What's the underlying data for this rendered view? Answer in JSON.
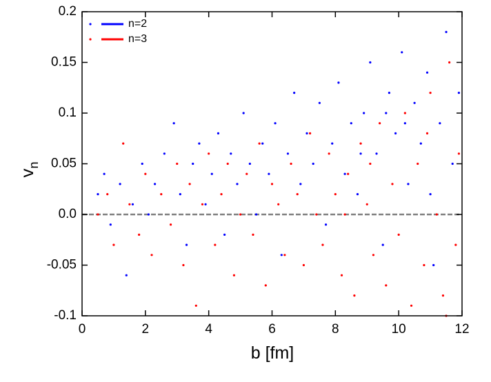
{
  "chart_data": {
    "type": "scatter",
    "xlabel": "b [fm]",
    "ylabel": "v",
    "ylabel_subscript": "n",
    "xlim": [
      0,
      12
    ],
    "xticks": [
      0,
      2,
      4,
      6,
      8,
      10,
      12
    ],
    "ylim": [
      -0.1,
      0.2
    ],
    "yticks": [
      -0.1,
      -0.05,
      {
        "value": 0,
        "label": "0.0"
      },
      0.05,
      0.1,
      0.15,
      0.2
    ],
    "legend": "upper left",
    "reference_line": {
      "y": 0,
      "color": "#808080",
      "style": "dashed"
    },
    "series": [
      {
        "name": "n=2",
        "color": "#0000ff",
        "x": [
          0.5,
          0.7,
          0.9,
          1.2,
          1.4,
          1.6,
          1.9,
          2.1,
          2.3,
          2.6,
          2.9,
          3.1,
          3.3,
          3.5,
          3.7,
          3.9,
          4.1,
          4.3,
          4.5,
          4.7,
          4.9,
          5.1,
          5.3,
          5.5,
          5.7,
          5.9,
          6.1,
          6.3,
          6.5,
          6.7,
          6.9,
          7.1,
          7.3,
          7.5,
          7.7,
          7.9,
          8.1,
          8.3,
          8.5,
          8.7,
          8.9,
          9.1,
          9.3,
          9.5,
          9.7,
          9.9,
          10.1,
          10.3,
          10.5,
          10.7,
          10.9,
          11.1,
          11.3,
          11.5,
          11.7,
          11.9,
          10.2,
          9.6,
          8.8,
          11.0
        ],
        "values": [
          0.02,
          0.04,
          -0.01,
          0.03,
          -0.06,
          0.01,
          0.05,
          0.0,
          0.03,
          0.06,
          0.09,
          0.02,
          -0.03,
          0.05,
          0.07,
          0.01,
          0.04,
          0.08,
          -0.02,
          0.06,
          0.03,
          0.1,
          0.05,
          0.0,
          0.07,
          0.04,
          0.09,
          -0.04,
          0.06,
          0.12,
          0.03,
          0.08,
          0.05,
          0.11,
          -0.01,
          0.07,
          0.13,
          0.04,
          0.09,
          0.02,
          0.1,
          0.15,
          0.06,
          -0.03,
          0.12,
          0.08,
          0.16,
          0.03,
          0.11,
          0.07,
          0.14,
          -0.05,
          0.09,
          0.18,
          0.05,
          0.12,
          0.09,
          0.1,
          0.06,
          0.02
        ]
      },
      {
        "name": "n=3",
        "color": "#ff0000",
        "x": [
          0.5,
          0.8,
          1.0,
          1.3,
          1.5,
          1.8,
          2.0,
          2.2,
          2.5,
          2.8,
          3.0,
          3.2,
          3.4,
          3.6,
          3.8,
          4.0,
          4.2,
          4.4,
          4.6,
          4.8,
          5.0,
          5.2,
          5.4,
          5.6,
          5.8,
          6.0,
          6.2,
          6.4,
          6.6,
          6.8,
          7.0,
          7.2,
          7.4,
          7.6,
          7.8,
          8.0,
          8.2,
          8.4,
          8.6,
          8.8,
          9.0,
          9.2,
          9.4,
          9.6,
          9.8,
          10.0,
          10.2,
          10.4,
          10.6,
          10.8,
          11.0,
          11.2,
          11.4,
          11.6,
          11.8,
          11.9,
          9.1,
          10.9,
          8.3,
          11.5
        ],
        "values": [
          0.0,
          0.02,
          -0.03,
          0.07,
          0.01,
          -0.02,
          0.04,
          -0.04,
          0.02,
          -0.01,
          0.05,
          -0.05,
          0.03,
          -0.09,
          0.01,
          0.06,
          -0.03,
          0.02,
          0.05,
          -0.06,
          0.0,
          0.04,
          -0.02,
          0.07,
          -0.07,
          0.03,
          0.01,
          -0.04,
          0.05,
          0.02,
          -0.05,
          0.08,
          0.0,
          -0.03,
          0.06,
          0.02,
          -0.06,
          0.04,
          -0.08,
          0.07,
          0.01,
          -0.04,
          0.09,
          -0.07,
          0.03,
          -0.02,
          0.1,
          -0.09,
          0.05,
          -0.05,
          0.12,
          0.0,
          -0.08,
          0.15,
          -0.03,
          0.06,
          0.05,
          0.08,
          0.0,
          -0.1
        ]
      }
    ]
  }
}
